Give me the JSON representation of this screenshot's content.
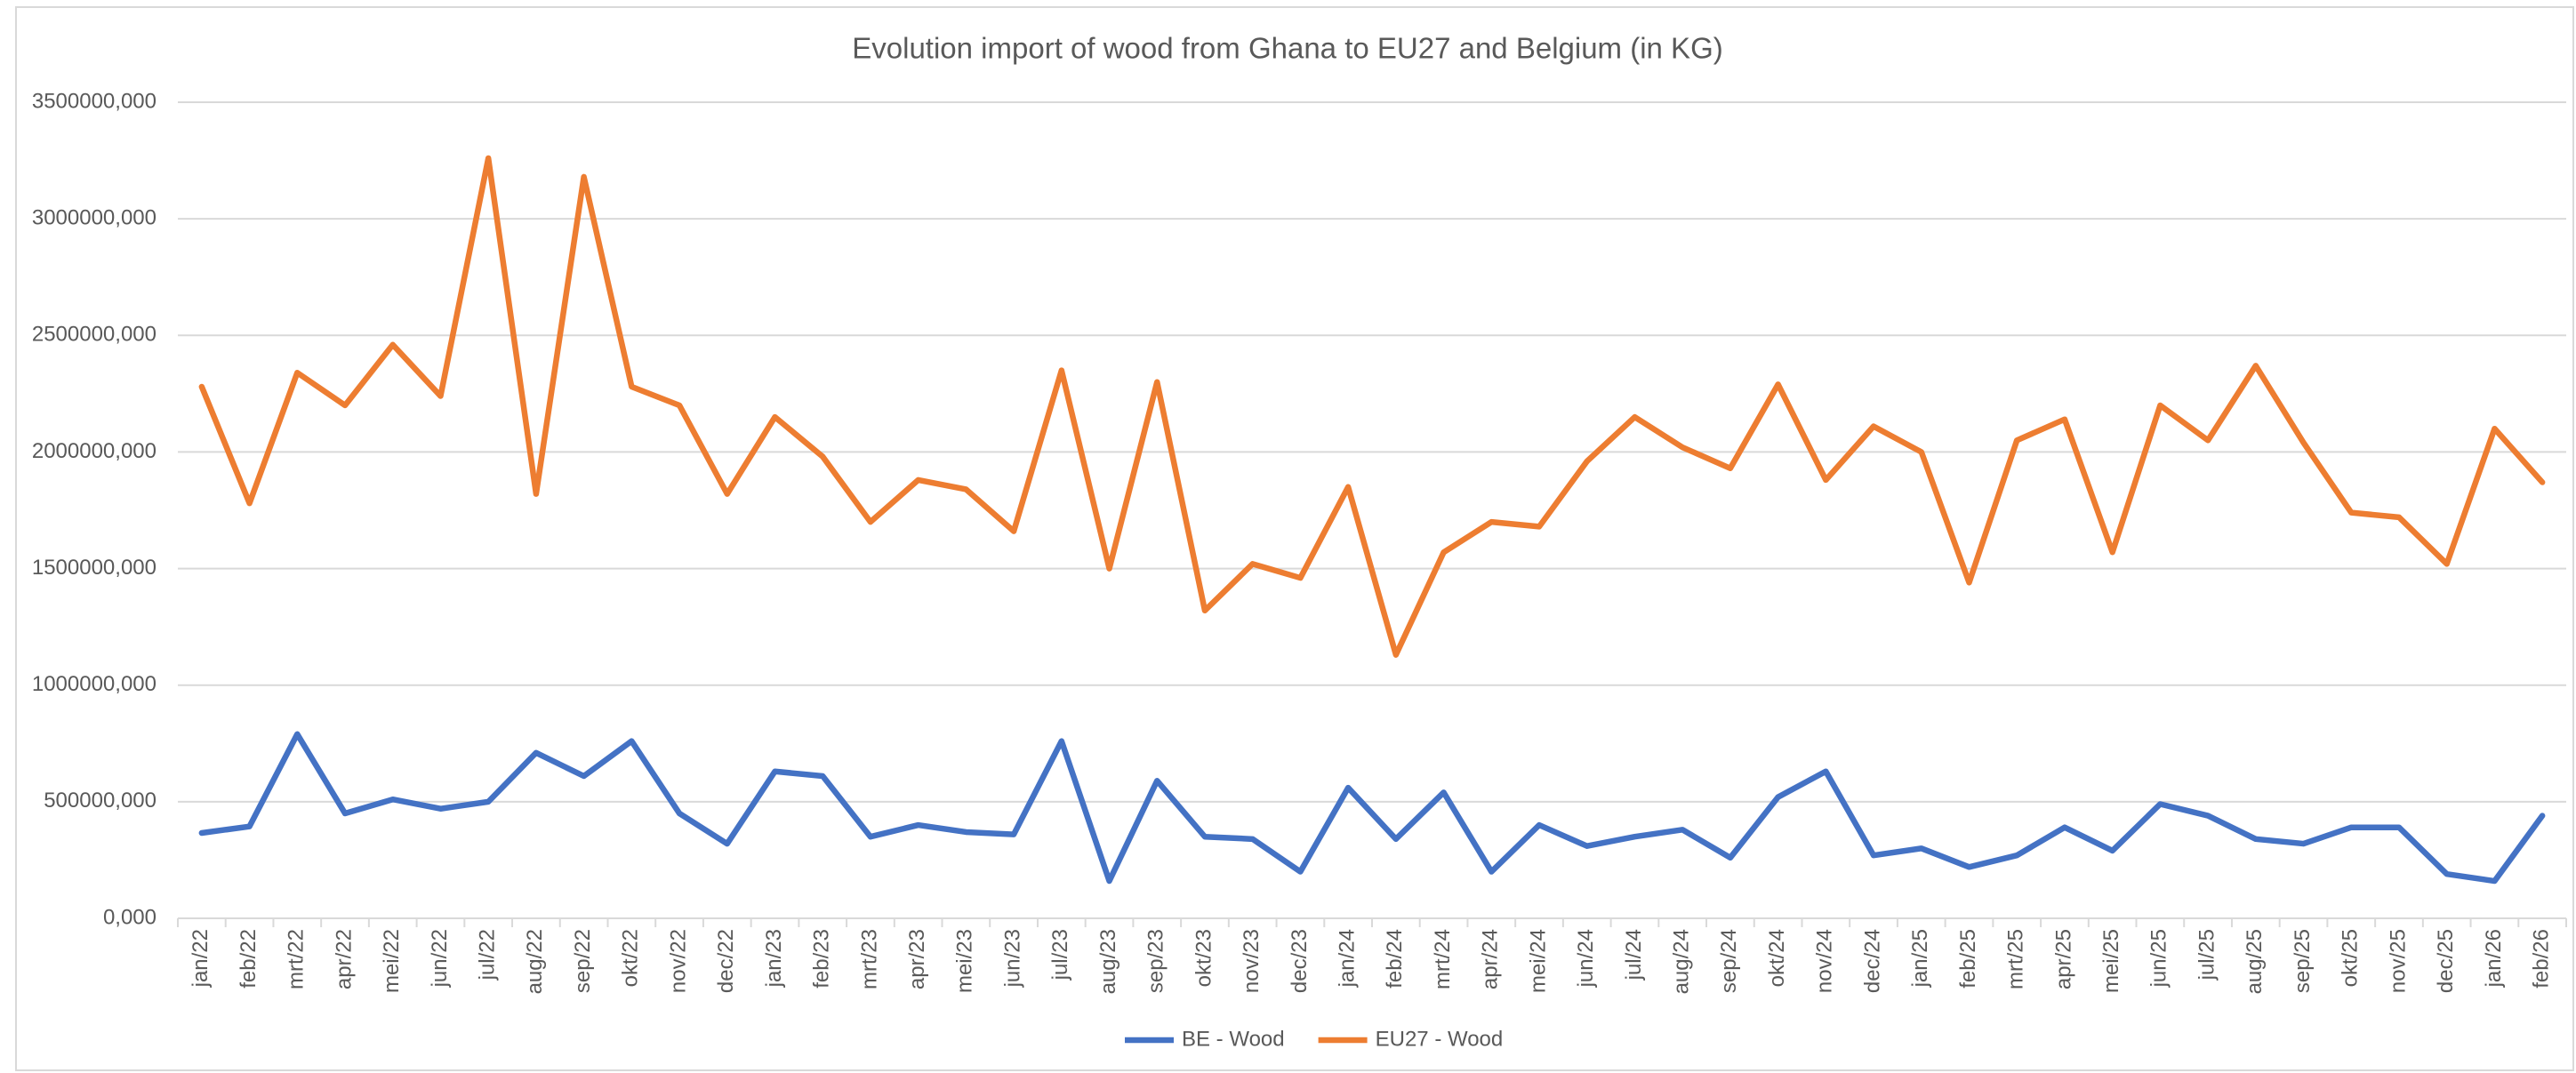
{
  "chart_data": {
    "type": "line",
    "title": "Evolution import of wood from Ghana to EU27 and Belgium (in KG)",
    "categories": [
      "jan/22",
      "feb/22",
      "mrt/22",
      "apr/22",
      "mei/22",
      "jun/22",
      "jul/22",
      "aug/22",
      "sep/22",
      "okt/22",
      "nov/22",
      "dec/22",
      "jan/23",
      "feb/23",
      "mrt/23",
      "apr/23",
      "mei/23",
      "jun/23",
      "jul/23",
      "aug/23",
      "sep/23",
      "okt/23",
      "nov/23",
      "dec/23",
      "jan/24",
      "feb/24",
      "mrt/24",
      "apr/24",
      "mei/24",
      "jun/24",
      "jul/24",
      "aug/24",
      "sep/24",
      "okt/24",
      "nov/24",
      "dec/24",
      "jan/25",
      "feb/25",
      "mrt/25",
      "apr/25",
      "mei/25",
      "jun/25",
      "jul/25",
      "aug/25",
      "sep/25",
      "okt/25",
      "nov/25",
      "dec/25",
      "jan/26",
      "feb/26"
    ],
    "series": [
      {
        "name": "BE - Wood",
        "color": "#4472c4",
        "values": [
          366000,
          394000,
          790000,
          450000,
          510000,
          470000,
          500000,
          710000,
          610000,
          760000,
          450000,
          320000,
          630000,
          610000,
          350000,
          400000,
          370000,
          360000,
          760000,
          160000,
          590000,
          350000,
          340000,
          200000,
          560000,
          340000,
          540000,
          200000,
          400000,
          310000,
          350000,
          380000,
          260000,
          520000,
          630000,
          270000,
          300000,
          220000,
          270000,
          390000,
          290000,
          490000,
          440000,
          340000,
          320000,
          390000,
          390000,
          190000,
          160000,
          440000
        ]
      },
      {
        "name": "EU27 - Wood",
        "color": "#ed7d31",
        "values": [
          2280000,
          1780000,
          2340000,
          2200000,
          2460000,
          2240000,
          3260000,
          1820000,
          3180000,
          2280000,
          2200000,
          1820000,
          2150000,
          1980000,
          1700000,
          1880000,
          1840000,
          1660000,
          2350000,
          1500000,
          2300000,
          1320000,
          1520000,
          1460000,
          1850000,
          1130000,
          1570000,
          1700000,
          1680000,
          1960000,
          2150000,
          2020000,
          1930000,
          2290000,
          1880000,
          2110000,
          2000000,
          1440000,
          2050000,
          2140000,
          1570000,
          2200000,
          2050000,
          2370000,
          2040000,
          1740000,
          1720000,
          1520000,
          2100000,
          1870000
        ]
      }
    ],
    "ylim": [
      0,
      3500000
    ],
    "yticks": [
      {
        "value": 0,
        "label": "0,000"
      },
      {
        "value": 500000,
        "label": "500000,000"
      },
      {
        "value": 1000000,
        "label": "1000000,000"
      },
      {
        "value": 1500000,
        "label": "1500000,000"
      },
      {
        "value": 2000000,
        "label": "2000000,000"
      },
      {
        "value": 2500000,
        "label": "2500000,000"
      },
      {
        "value": 3000000,
        "label": "3000000,000"
      },
      {
        "value": 3500000,
        "label": "3500000,000"
      }
    ],
    "grid": true,
    "legend": "bottom"
  }
}
